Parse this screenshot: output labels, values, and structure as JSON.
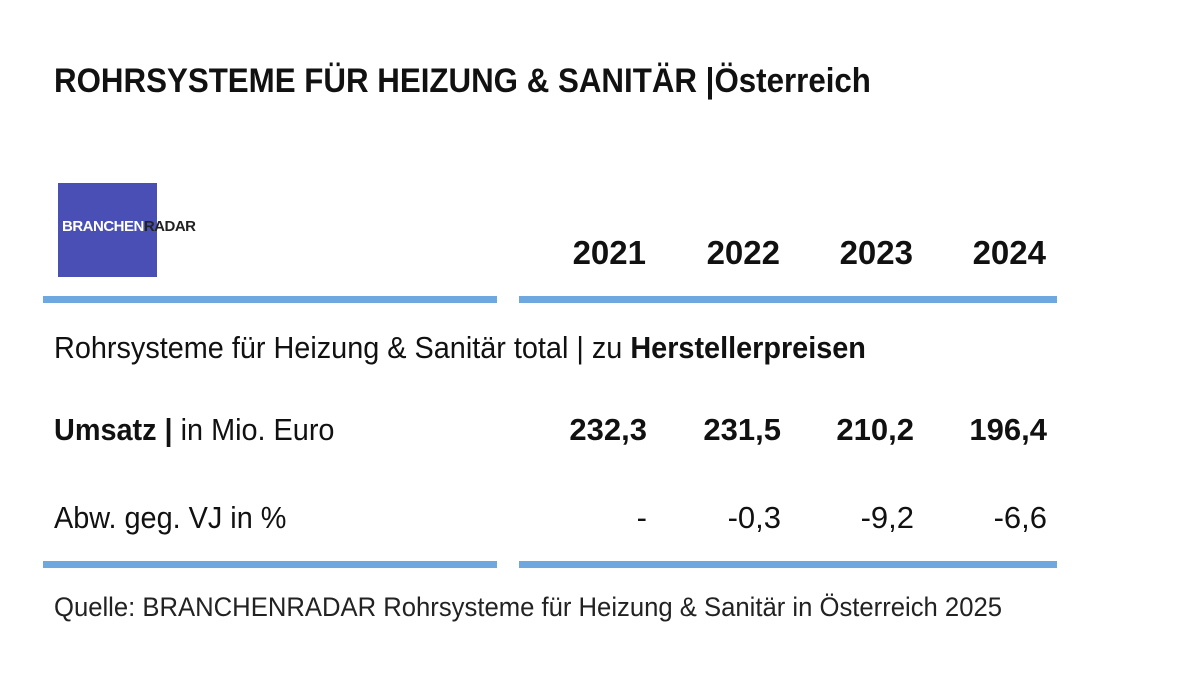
{
  "title": "ROHRSYSTEME FÜR HEIZUNG & SANITÄR  |Österreich",
  "logo": {
    "part1": "BRANCHEN",
    "part2": "RADAR",
    "color": "#4a4fb5"
  },
  "accent_color": "#6fa8de",
  "subtitle": {
    "text": "Rohrsysteme für Heizung & Sanitär  total | zu ",
    "bold": "Herstellerpreisen"
  },
  "chart_data": {
    "type": "table",
    "columns": [
      "2021",
      "2022",
      "2023",
      "2024"
    ],
    "rows": [
      {
        "label_bold": "Umsatz |",
        "label_rest": " in Mio. Euro",
        "values": [
          "232,3",
          "231,5",
          "210,2",
          "196,4"
        ]
      },
      {
        "label_bold": "",
        "label_rest": "Abw. geg. VJ in %",
        "values": [
          "-",
          "-0,3",
          "-9,2",
          "-6,6"
        ]
      }
    ]
  },
  "source": "Quelle: BRANCHENRADAR Rohrsysteme für Heizung & Sanitär  in Österreich 2025"
}
